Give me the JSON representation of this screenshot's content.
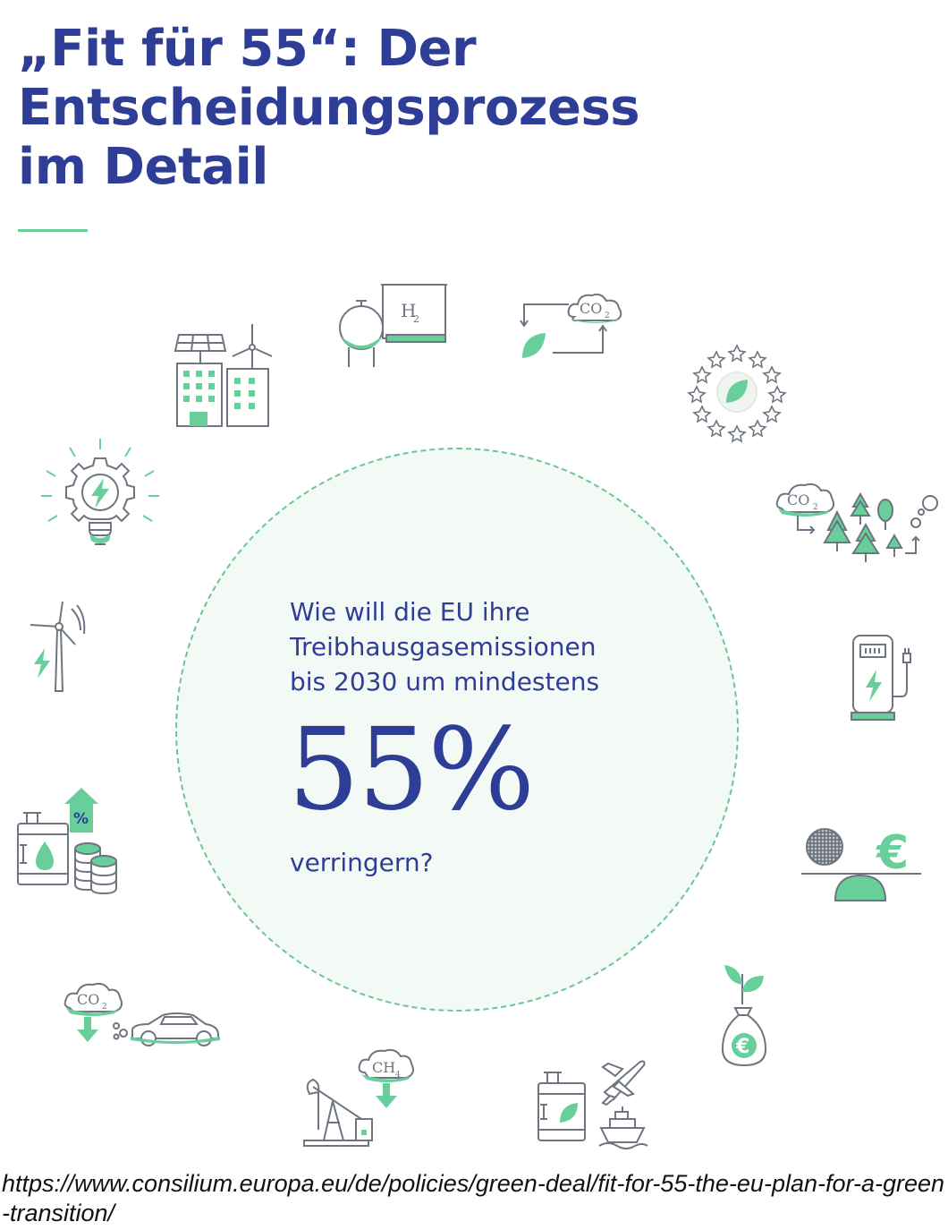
{
  "colors": {
    "brand_blue": "#2e3d96",
    "accent_green": "#68cf9b",
    "circle_fill": "#f3faf5",
    "line_gray": "#6e7580"
  },
  "header": {
    "title_lines": [
      "„Fit für 55“: Der",
      "Entscheidungsprozess",
      "im Detail"
    ]
  },
  "center": {
    "question_lines": [
      "Wie will die EU ihre",
      "Treibhausgasemissionen",
      "bis 2030 um mindestens"
    ],
    "big_value": "55%",
    "tail": "verringern?"
  },
  "icons": [
    {
      "name": "solar-wind-buildings-icon"
    },
    {
      "name": "hydrogen-tank-icon",
      "label": "H2"
    },
    {
      "name": "co2-leaf-cycle-icon",
      "label": "CO2"
    },
    {
      "name": "eu-stars-leaf-icon"
    },
    {
      "name": "co2-forest-icon",
      "label": "CO2"
    },
    {
      "name": "ev-charging-station-icon"
    },
    {
      "name": "balance-euro-icon",
      "label": "€"
    },
    {
      "name": "money-bag-sprout-icon",
      "label": "€"
    },
    {
      "name": "fuel-plane-ship-icon"
    },
    {
      "name": "oil-pump-methane-icon",
      "label": "CH4"
    },
    {
      "name": "car-co2-icon",
      "label": "CO2"
    },
    {
      "name": "fuel-percent-coins-icon",
      "label": "%"
    },
    {
      "name": "wind-turbine-bolt-icon"
    },
    {
      "name": "gear-bulb-bolt-icon"
    }
  ],
  "source_url": "https://www.consilium.europa.eu/de/policies/green-deal/fit-for-55-the-eu-plan-for-a-green-transition/"
}
